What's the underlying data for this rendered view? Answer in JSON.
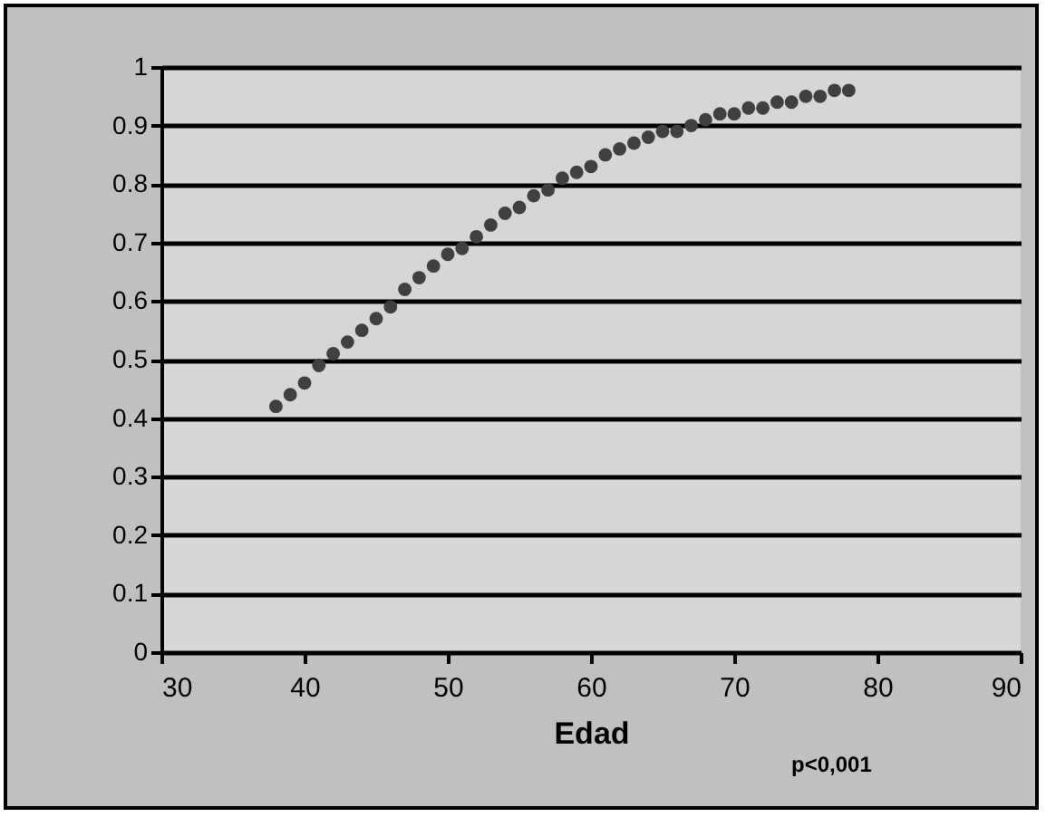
{
  "chart_data": {
    "type": "scatter",
    "xlabel": "Edad",
    "annotations": [
      "p<0,001"
    ],
    "x": [
      38,
      39,
      40,
      41,
      42,
      43,
      44,
      45,
      46,
      47,
      48,
      49,
      50,
      51,
      52,
      53,
      54,
      55,
      56,
      57,
      58,
      59,
      60,
      61,
      62,
      63,
      64,
      65,
      66,
      67,
      68,
      69,
      70,
      71,
      72,
      73,
      74,
      75,
      76,
      77,
      78
    ],
    "series": [
      {
        "color": "#404040",
        "values": [
          0.42,
          0.44,
          0.46,
          0.49,
          0.51,
          0.53,
          0.55,
          0.57,
          0.59,
          0.62,
          0.64,
          0.66,
          0.68,
          0.69,
          0.71,
          0.73,
          0.75,
          0.76,
          0.78,
          0.79,
          0.81,
          0.82,
          0.83,
          0.85,
          0.86,
          0.87,
          0.88,
          0.89,
          0.89,
          0.9,
          0.91,
          0.92,
          0.92,
          0.93,
          0.93,
          0.94,
          0.94,
          0.95,
          0.95,
          0.96,
          0.96
        ]
      }
    ],
    "xlim": [
      30,
      90
    ],
    "xticks": [
      30,
      40,
      50,
      60,
      70,
      80,
      90
    ],
    "ylim": [
      0,
      1
    ],
    "yticks": [
      0,
      0.1,
      0.2,
      0.3,
      0.4,
      0.5,
      0.6,
      0.7,
      0.8,
      0.9,
      1
    ],
    "grid": "y",
    "marker": "circle"
  }
}
